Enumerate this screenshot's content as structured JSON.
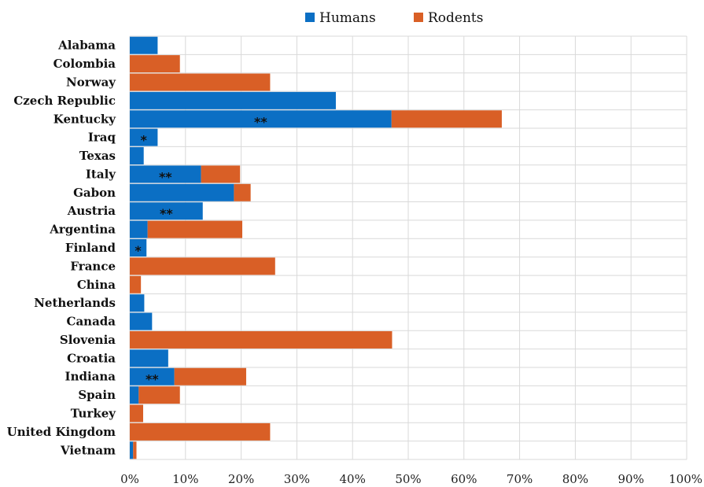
{
  "chart_data": {
    "type": "bar",
    "orientation": "horizontal",
    "stacked": true,
    "categories": [
      "Alabama",
      "Colombia",
      "Norway",
      "Czech Republic",
      "Kentucky",
      "Iraq",
      "Texas",
      "Italy",
      "Gabon",
      "Austria",
      "Argentina",
      "Finland",
      "France",
      "China",
      "Netherlands",
      "Canada",
      "Slovenia",
      "Croatia",
      "Indiana",
      "Spain",
      "Turkey",
      "United Kingdom",
      "Vietnam"
    ],
    "series": [
      {
        "name": "Humans",
        "color": "#0b6fc4",
        "values": [
          5,
          0,
          0,
          37,
          47,
          5,
          2.5,
          12.8,
          18.7,
          13.1,
          3.2,
          3,
          0,
          0,
          2.6,
          4,
          0,
          6.9,
          8,
          1.6,
          0,
          0,
          0.6
        ]
      },
      {
        "name": "Rodents",
        "color": "#d95f26",
        "values": [
          0,
          9,
          25.2,
          0,
          19.8,
          0,
          0,
          7,
          3,
          0,
          17,
          0,
          26.1,
          2,
          0,
          0,
          47.1,
          0,
          12.9,
          7.4,
          2.4,
          25.2,
          0.6
        ]
      }
    ],
    "annotations": [
      "",
      "",
      "",
      "",
      "**",
      "*",
      "",
      "**",
      "",
      "**",
      "",
      "*",
      "",
      "",
      "",
      "",
      "",
      "",
      "**",
      "",
      "",
      "",
      ""
    ],
    "xlim": [
      0,
      100
    ],
    "x_ticks": [
      "0%",
      "10%",
      "20%",
      "30%",
      "40%",
      "50%",
      "60%",
      "70%",
      "80%",
      "90%",
      "100%"
    ],
    "grid": true,
    "legend_position": "top"
  }
}
